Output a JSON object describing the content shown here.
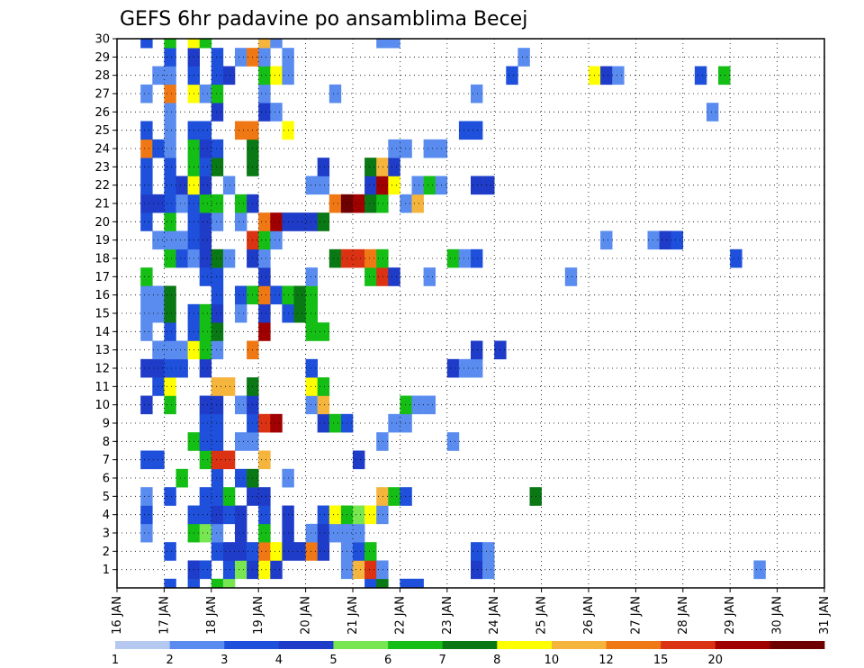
{
  "chart_data": {
    "type": "heatmap",
    "title": "GEFS 6hr padavine po ansamblima Becej",
    "members": [
      1,
      2,
      3,
      4,
      5,
      6,
      7,
      8,
      9,
      10,
      11,
      12,
      13,
      14,
      15,
      16,
      17,
      18,
      19,
      20,
      21,
      22,
      23,
      24,
      25,
      26,
      27,
      28,
      29,
      30
    ],
    "x_dates": [
      "16 JAN",
      "17 JAN",
      "18 JAN",
      "19 JAN",
      "20 JAN",
      "21 JAN",
      "22 JAN",
      "23 JAN",
      "24 JAN",
      "25 JAN",
      "26 JAN",
      "27 JAN",
      "28 JAN",
      "29 JAN",
      "30 JAN",
      "31 JAN"
    ],
    "xlim_steps": [
      0,
      60
    ],
    "ylim": [
      0,
      30
    ],
    "grid": true,
    "colorbar": {
      "levels": [
        1,
        2,
        3,
        4,
        5,
        6,
        7,
        8,
        10,
        12,
        15,
        20
      ],
      "colors": [
        "#b4c8f0",
        "#5a8cf0",
        "#1e50dc",
        "#1e3cc8",
        "#78e650",
        "#14be14",
        "#0a7814",
        "#ffff00",
        "#f5b43c",
        "#f07814",
        "#dc3214",
        "#a00000",
        "#6e0000"
      ]
    },
    "cells": [
      [
        0,
        4,
        2
      ],
      [
        0,
        6,
        2
      ],
      [
        0,
        8,
        5
      ],
      [
        0,
        9,
        4
      ],
      [
        0,
        21,
        2
      ],
      [
        0,
        22,
        6
      ],
      [
        0,
        24,
        2
      ],
      [
        0,
        25,
        2
      ],
      [
        1,
        6,
        3
      ],
      [
        1,
        7,
        2
      ],
      [
        1,
        9,
        2
      ],
      [
        1,
        10,
        4
      ],
      [
        1,
        11,
        3
      ],
      [
        1,
        12,
        7
      ],
      [
        1,
        13,
        3
      ],
      [
        1,
        19,
        1
      ],
      [
        1,
        20,
        8
      ],
      [
        1,
        21,
        12
      ],
      [
        1,
        22,
        1
      ],
      [
        1,
        30,
        3
      ],
      [
        1,
        31,
        1
      ],
      [
        1,
        54,
        1
      ],
      [
        2,
        4,
        2
      ],
      [
        2,
        8,
        2
      ],
      [
        2,
        9,
        3
      ],
      [
        2,
        10,
        3
      ],
      [
        2,
        11,
        2
      ],
      [
        2,
        12,
        11
      ],
      [
        2,
        13,
        7
      ],
      [
        2,
        14,
        3
      ],
      [
        2,
        15,
        3
      ],
      [
        2,
        16,
        11
      ],
      [
        2,
        17,
        3
      ],
      [
        2,
        19,
        1
      ],
      [
        2,
        20,
        2
      ],
      [
        2,
        21,
        5
      ],
      [
        2,
        30,
        2
      ],
      [
        2,
        31,
        1
      ],
      [
        3,
        2,
        1
      ],
      [
        3,
        6,
        5
      ],
      [
        3,
        7,
        4
      ],
      [
        3,
        8,
        1
      ],
      [
        3,
        10,
        3
      ],
      [
        3,
        12,
        5
      ],
      [
        3,
        14,
        3
      ],
      [
        3,
        16,
        1
      ],
      [
        3,
        17,
        3
      ],
      [
        3,
        18,
        1
      ],
      [
        3,
        19,
        1
      ],
      [
        3,
        20,
        1
      ],
      [
        4,
        2,
        2
      ],
      [
        4,
        6,
        2
      ],
      [
        4,
        7,
        2
      ],
      [
        4,
        8,
        3
      ],
      [
        4,
        9,
        2
      ],
      [
        4,
        10,
        3
      ],
      [
        4,
        12,
        2
      ],
      [
        4,
        14,
        3
      ],
      [
        4,
        17,
        2
      ],
      [
        4,
        18,
        7
      ],
      [
        4,
        19,
        5
      ],
      [
        4,
        20,
        4
      ],
      [
        4,
        21,
        7
      ],
      [
        4,
        22,
        1
      ],
      [
        5,
        2,
        1
      ],
      [
        5,
        4,
        2
      ],
      [
        5,
        7,
        2
      ],
      [
        5,
        8,
        2
      ],
      [
        5,
        9,
        5
      ],
      [
        5,
        11,
        3
      ],
      [
        5,
        12,
        3
      ],
      [
        5,
        22,
        8
      ],
      [
        5,
        23,
        5
      ],
      [
        5,
        24,
        2
      ],
      [
        5,
        35,
        6
      ],
      [
        6,
        5,
        5
      ],
      [
        6,
        8,
        2
      ],
      [
        6,
        10,
        2
      ],
      [
        6,
        11,
        6
      ],
      [
        6,
        14,
        1
      ],
      [
        7,
        2,
        2
      ],
      [
        7,
        3,
        2
      ],
      [
        7,
        7,
        5
      ],
      [
        7,
        8,
        12
      ],
      [
        7,
        9,
        13
      ],
      [
        7,
        12,
        8
      ],
      [
        7,
        20,
        3
      ],
      [
        8,
        6,
        5
      ],
      [
        8,
        7,
        2
      ],
      [
        8,
        8,
        2
      ],
      [
        8,
        10,
        1
      ],
      [
        8,
        11,
        1
      ],
      [
        8,
        22,
        1
      ],
      [
        8,
        28,
        1
      ],
      [
        9,
        7,
        2
      ],
      [
        9,
        8,
        2
      ],
      [
        9,
        11,
        2
      ],
      [
        9,
        12,
        12
      ],
      [
        9,
        13,
        15
      ],
      [
        9,
        17,
        3
      ],
      [
        9,
        18,
        5
      ],
      [
        9,
        19,
        2
      ],
      [
        9,
        23,
        1
      ],
      [
        9,
        24,
        1
      ],
      [
        10,
        2,
        3
      ],
      [
        10,
        4,
        5
      ],
      [
        10,
        7,
        3
      ],
      [
        10,
        8,
        3
      ],
      [
        10,
        10,
        1
      ],
      [
        10,
        11,
        3
      ],
      [
        10,
        16,
        1
      ],
      [
        10,
        17,
        8
      ],
      [
        10,
        24,
        5
      ],
      [
        10,
        25,
        1
      ],
      [
        10,
        26,
        1
      ],
      [
        11,
        3,
        2
      ],
      [
        11,
        4,
        7
      ],
      [
        11,
        8,
        8
      ],
      [
        11,
        9,
        8
      ],
      [
        11,
        11,
        6
      ],
      [
        11,
        16,
        7
      ],
      [
        11,
        17,
        5
      ],
      [
        12,
        2,
        3
      ],
      [
        12,
        3,
        3
      ],
      [
        12,
        4,
        2
      ],
      [
        12,
        5,
        2
      ],
      [
        12,
        7,
        3
      ],
      [
        12,
        16,
        2
      ],
      [
        12,
        28,
        3
      ],
      [
        12,
        29,
        1
      ],
      [
        12,
        30,
        1
      ],
      [
        13,
        3,
        1
      ],
      [
        13,
        4,
        1
      ],
      [
        13,
        5,
        1
      ],
      [
        13,
        6,
        7
      ],
      [
        13,
        7,
        5
      ],
      [
        13,
        8,
        1
      ],
      [
        13,
        11,
        10
      ],
      [
        13,
        30,
        3
      ],
      [
        13,
        32,
        3
      ],
      [
        14,
        2,
        1
      ],
      [
        14,
        4,
        2
      ],
      [
        14,
        6,
        2
      ],
      [
        14,
        7,
        5
      ],
      [
        14,
        8,
        6
      ],
      [
        14,
        12,
        15
      ],
      [
        14,
        16,
        5
      ],
      [
        14,
        17,
        5
      ],
      [
        15,
        2,
        1
      ],
      [
        15,
        3,
        1
      ],
      [
        15,
        4,
        6
      ],
      [
        15,
        6,
        2
      ],
      [
        15,
        7,
        5
      ],
      [
        15,
        8,
        3
      ],
      [
        15,
        10,
        1
      ],
      [
        15,
        12,
        3
      ],
      [
        15,
        14,
        2
      ],
      [
        15,
        15,
        6
      ],
      [
        15,
        16,
        5
      ],
      [
        16,
        2,
        1
      ],
      [
        16,
        3,
        1
      ],
      [
        16,
        4,
        6
      ],
      [
        16,
        8,
        2
      ],
      [
        16,
        10,
        2
      ],
      [
        16,
        11,
        5
      ],
      [
        16,
        12,
        10
      ],
      [
        16,
        13,
        2
      ],
      [
        16,
        14,
        5
      ],
      [
        16,
        15,
        6
      ],
      [
        16,
        16,
        5
      ],
      [
        17,
        2,
        5
      ],
      [
        17,
        7,
        2
      ],
      [
        17,
        8,
        2
      ],
      [
        17,
        12,
        3
      ],
      [
        17,
        16,
        1
      ],
      [
        17,
        21,
        5
      ],
      [
        17,
        22,
        12
      ],
      [
        17,
        23,
        3
      ],
      [
        17,
        26,
        1
      ],
      [
        17,
        38,
        1
      ],
      [
        18,
        4,
        5
      ],
      [
        18,
        5,
        2
      ],
      [
        18,
        6,
        1
      ],
      [
        18,
        7,
        3
      ],
      [
        18,
        8,
        6
      ],
      [
        18,
        9,
        1
      ],
      [
        18,
        11,
        3
      ],
      [
        18,
        12,
        1
      ],
      [
        18,
        18,
        6
      ],
      [
        18,
        19,
        12
      ],
      [
        18,
        20,
        12
      ],
      [
        18,
        21,
        10
      ],
      [
        18,
        22,
        5
      ],
      [
        18,
        28,
        5
      ],
      [
        18,
        29,
        1
      ],
      [
        18,
        30,
        2
      ],
      [
        18,
        52,
        2
      ],
      [
        19,
        3,
        1
      ],
      [
        19,
        4,
        1
      ],
      [
        19,
        5,
        1
      ],
      [
        19,
        6,
        2
      ],
      [
        19,
        7,
        3
      ],
      [
        19,
        11,
        13
      ],
      [
        19,
        12,
        5
      ],
      [
        19,
        13,
        1
      ],
      [
        19,
        41,
        1
      ],
      [
        19,
        45,
        1
      ],
      [
        19,
        46,
        3
      ],
      [
        19,
        47,
        2
      ],
      [
        20,
        2,
        2
      ],
      [
        20,
        4,
        5
      ],
      [
        20,
        6,
        2
      ],
      [
        20,
        7,
        3
      ],
      [
        20,
        8,
        1
      ],
      [
        20,
        10,
        1
      ],
      [
        20,
        12,
        11
      ],
      [
        20,
        13,
        15
      ],
      [
        20,
        14,
        3
      ],
      [
        20,
        15,
        3
      ],
      [
        20,
        16,
        3
      ],
      [
        20,
        17,
        6
      ],
      [
        21,
        2,
        3
      ],
      [
        21,
        3,
        3
      ],
      [
        21,
        4,
        2
      ],
      [
        21,
        5,
        1
      ],
      [
        21,
        6,
        2
      ],
      [
        21,
        7,
        5
      ],
      [
        21,
        8,
        5
      ],
      [
        21,
        10,
        5
      ],
      [
        21,
        11,
        3
      ],
      [
        21,
        18,
        11
      ],
      [
        21,
        19,
        20
      ],
      [
        21,
        20,
        15
      ],
      [
        21,
        21,
        6
      ],
      [
        21,
        22,
        5
      ],
      [
        21,
        24,
        1
      ],
      [
        21,
        25,
        8
      ],
      [
        22,
        2,
        2
      ],
      [
        22,
        4,
        2
      ],
      [
        22,
        5,
        3
      ],
      [
        22,
        6,
        7
      ],
      [
        22,
        7,
        3
      ],
      [
        22,
        9,
        1
      ],
      [
        22,
        16,
        1
      ],
      [
        22,
        17,
        1
      ],
      [
        22,
        21,
        3
      ],
      [
        22,
        22,
        15
      ],
      [
        22,
        23,
        7
      ],
      [
        22,
        25,
        1
      ],
      [
        22,
        26,
        5
      ],
      [
        22,
        27,
        1
      ],
      [
        22,
        30,
        3
      ],
      [
        22,
        31,
        3
      ],
      [
        23,
        2,
        2
      ],
      [
        23,
        4,
        2
      ],
      [
        23,
        6,
        5
      ],
      [
        23,
        7,
        2
      ],
      [
        23,
        8,
        6
      ],
      [
        23,
        11,
        6
      ],
      [
        23,
        17,
        3
      ],
      [
        23,
        21,
        6
      ],
      [
        23,
        22,
        8
      ],
      [
        23,
        23,
        3
      ],
      [
        24,
        2,
        10
      ],
      [
        24,
        3,
        2
      ],
      [
        24,
        4,
        1
      ],
      [
        24,
        6,
        5
      ],
      [
        24,
        7,
        3
      ],
      [
        24,
        8,
        2
      ],
      [
        24,
        11,
        6
      ],
      [
        24,
        23,
        1
      ],
      [
        24,
        24,
        1
      ],
      [
        24,
        26,
        1
      ],
      [
        24,
        27,
        1
      ],
      [
        25,
        2,
        2
      ],
      [
        25,
        4,
        1
      ],
      [
        25,
        6,
        2
      ],
      [
        25,
        7,
        2
      ],
      [
        25,
        10,
        10
      ],
      [
        25,
        11,
        10
      ],
      [
        25,
        14,
        7
      ],
      [
        25,
        29,
        2
      ],
      [
        25,
        30,
        2
      ],
      [
        26,
        4,
        1
      ],
      [
        26,
        8,
        3
      ],
      [
        26,
        12,
        3
      ],
      [
        26,
        13,
        1
      ],
      [
        26,
        50,
        1
      ],
      [
        27,
        2,
        1
      ],
      [
        27,
        4,
        10
      ],
      [
        27,
        6,
        7
      ],
      [
        27,
        7,
        1
      ],
      [
        27,
        8,
        5
      ],
      [
        27,
        12,
        1
      ],
      [
        27,
        18,
        1
      ],
      [
        27,
        30,
        1
      ],
      [
        28,
        3,
        1
      ],
      [
        28,
        4,
        1
      ],
      [
        28,
        6,
        2
      ],
      [
        28,
        8,
        2
      ],
      [
        28,
        9,
        3
      ],
      [
        28,
        12,
        5
      ],
      [
        28,
        13,
        7
      ],
      [
        28,
        14,
        1
      ],
      [
        28,
        33,
        2
      ],
      [
        28,
        40,
        7
      ],
      [
        28,
        41,
        3
      ],
      [
        28,
        42,
        1
      ],
      [
        28,
        49,
        2
      ],
      [
        28,
        51,
        5
      ],
      [
        29,
        4,
        2
      ],
      [
        29,
        6,
        3
      ],
      [
        29,
        8,
        2
      ],
      [
        29,
        10,
        1
      ],
      [
        29,
        11,
        10
      ],
      [
        29,
        12,
        1
      ],
      [
        29,
        14,
        1
      ],
      [
        29,
        34,
        1
      ],
      [
        30,
        2,
        2
      ],
      [
        30,
        4,
        5
      ],
      [
        30,
        6,
        7
      ],
      [
        30,
        7,
        5
      ],
      [
        30,
        12,
        8
      ],
      [
        30,
        13,
        1
      ],
      [
        30,
        22,
        1
      ],
      [
        30,
        23,
        1
      ]
    ]
  }
}
